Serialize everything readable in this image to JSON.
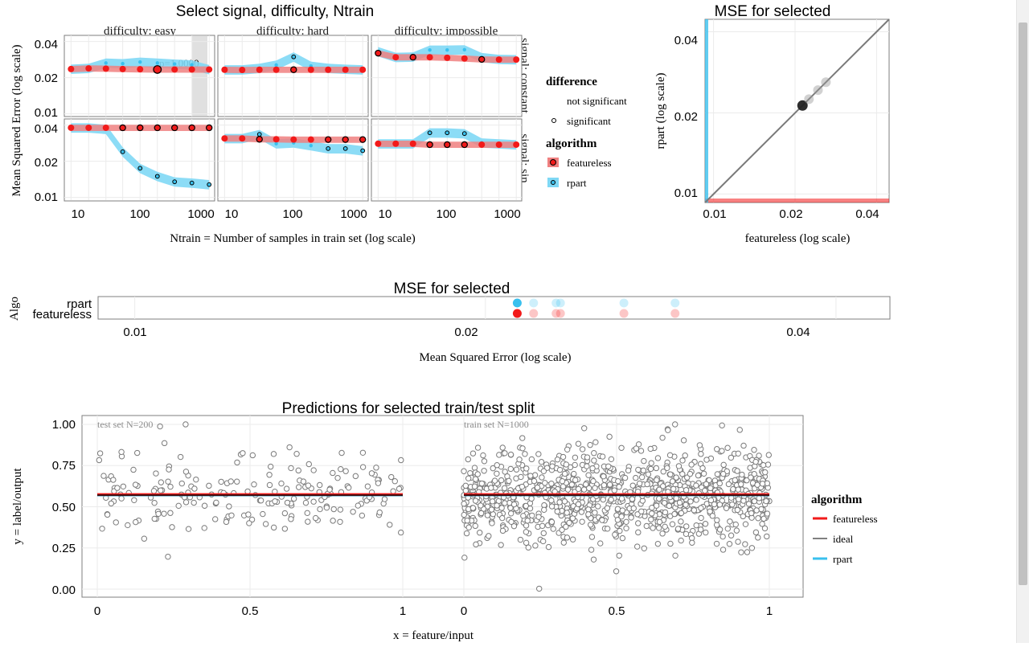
{
  "colors": {
    "featureless": "#f21a1a",
    "featureless_band": "#f08080",
    "rpart": "#39c0ee",
    "rpart_band": "#7fd8f5",
    "ideal": "#000000",
    "diag": "#7a7a7a"
  },
  "plot1": {
    "title": "Select signal, difficulty, Ntrain",
    "ylabel": "Mean Squared Error (log scale)",
    "xlabel": "Ntrain = Number of samples in train set (log scale)",
    "xticks": [
      "10",
      "100",
      "1000"
    ],
    "yticks": [
      "0.01",
      "0.02",
      "0.04"
    ],
    "difficulties": [
      "difficulty: easy",
      "difficulty: hard",
      "difficulty: impossible"
    ],
    "signals": [
      "signal: constant",
      "signal: sin"
    ],
    "pvalue_label": "p=1.0000",
    "legend": {
      "title_diff": "difference",
      "not_significant": "not significant",
      "significant": "significant",
      "title_algo": "algorithm",
      "featureless": "featureless",
      "rpart": "rpart"
    }
  },
  "plot2": {
    "title": "MSE for selected",
    "xlabel": "featureless (log scale)",
    "ylabel": "rpart (log scale)",
    "xticks": [
      "0.01",
      "0.02",
      "0.04"
    ],
    "yticks": [
      "0.01",
      "0.02",
      "0.04"
    ]
  },
  "plot3": {
    "title": "MSE for selected",
    "xlabel": "Mean Squared Error (log scale)",
    "ylabel": "Algo",
    "categories": [
      "featureless",
      "rpart"
    ],
    "xticks": [
      "0.01",
      "0.02",
      "0.04"
    ]
  },
  "plot4": {
    "title": "Predictions for selected train/test split",
    "xlabel": "x = feature/input",
    "ylabel": "y = label/output",
    "panels": [
      "test set N=200",
      "train set N=1000"
    ],
    "xticks": [
      "0",
      "0.5",
      "1"
    ],
    "yticks": [
      "0.00",
      "0.25",
      "0.50",
      "0.75",
      "1.00"
    ],
    "legend": {
      "title": "algorithm",
      "featureless": "featureless",
      "ideal": "ideal",
      "rpart": "rpart"
    }
  },
  "chart_data": [
    {
      "type": "line",
      "title": "Select signal, difficulty, Ntrain",
      "xlabel": "Ntrain = Number of samples in train set (log scale)",
      "ylabel": "Mean Squared Error (log scale)",
      "x_scale": "log",
      "y_scale": "log",
      "xlim": [
        8,
        1200
      ],
      "ylim": [
        0.0095,
        0.045
      ],
      "x": [
        10,
        18,
        32,
        56,
        100,
        178,
        316,
        562,
        1000
      ],
      "facets": [
        {
          "signal": "signal: constant",
          "difficulty": "difficulty: easy",
          "series": [
            {
              "name": "featureless",
              "values": [
                0.0236,
                0.0239,
                0.0238,
                0.0236,
                0.0235,
                0.0234,
                0.0234,
                0.0234,
                0.0234
              ]
            },
            {
              "name": "rpart",
              "values": [
                0.0236,
                0.024,
                0.0265,
                0.0262,
                0.027,
                0.0265,
                0.026,
                0.0256,
                0.0234
              ]
            }
          ],
          "significant": [
            false,
            false,
            false,
            false,
            false,
            false,
            false,
            false,
            false
          ],
          "selected_x": 178
        },
        {
          "signal": "signal: constant",
          "difficulty": "difficulty: hard",
          "series": [
            {
              "name": "featureless",
              "values": [
                0.0233,
                0.0232,
                0.0233,
                0.0233,
                0.0233,
                0.0233,
                0.0233,
                0.0233,
                0.0233
              ]
            },
            {
              "name": "rpart",
              "values": [
                0.0233,
                0.0233,
                0.024,
                0.0255,
                0.0298,
                0.025,
                0.024,
                0.0236,
                0.0233
              ]
            }
          ],
          "significant": [
            false,
            false,
            false,
            false,
            true,
            false,
            false,
            false,
            false
          ]
        },
        {
          "signal": "signal: constant",
          "difficulty": "difficulty: impossible",
          "series": [
            {
              "name": "featureless",
              "values": [
                0.032,
                0.0296,
                0.0296,
                0.0296,
                0.0293,
                0.0289,
                0.0284,
                0.0283,
                0.0283
              ]
            },
            {
              "name": "rpart",
              "values": [
                0.033,
                0.0296,
                0.0298,
                0.034,
                0.034,
                0.0342,
                0.0295,
                0.0285,
                0.0283
              ]
            }
          ],
          "significant": [
            true,
            false,
            true,
            false,
            false,
            false,
            true,
            false,
            false
          ]
        },
        {
          "signal": "signal: sin",
          "difficulty": "difficulty: easy",
          "series": [
            {
              "name": "featureless",
              "values": [
                0.038,
                0.038,
                0.038,
                0.038,
                0.038,
                0.038,
                0.038,
                0.038,
                0.038
              ]
            },
            {
              "name": "rpart",
              "values": [
                0.038,
                0.038,
                0.037,
                0.024,
                0.0175,
                0.015,
                0.0135,
                0.0132,
                0.0128
              ]
            }
          ],
          "significant": [
            false,
            false,
            false,
            true,
            true,
            true,
            true,
            true,
            true
          ]
        },
        {
          "signal": "signal: sin",
          "difficulty": "difficulty: hard",
          "series": [
            {
              "name": "featureless",
              "values": [
                0.031,
                0.031,
                0.0305,
                0.0305,
                0.0303,
                0.0303,
                0.0303,
                0.0303,
                0.0303
              ]
            },
            {
              "name": "rpart",
              "values": [
                0.031,
                0.031,
                0.0335,
                0.028,
                0.0285,
                0.027,
                0.0255,
                0.0255,
                0.0245
              ]
            }
          ],
          "significant": [
            false,
            false,
            true,
            false,
            false,
            false,
            true,
            true,
            true
          ]
        },
        {
          "signal": "signal: sin",
          "difficulty": "difficulty: impossible",
          "series": [
            {
              "name": "featureless",
              "values": [
                0.028,
                0.028,
                0.028,
                0.0275,
                0.0275,
                0.0275,
                0.0275,
                0.0275,
                0.0275
              ]
            },
            {
              "name": "rpart",
              "values": [
                0.028,
                0.028,
                0.028,
                0.0345,
                0.0345,
                0.034,
                0.0285,
                0.028,
                0.0275
              ]
            }
          ],
          "significant": [
            false,
            false,
            false,
            true,
            true,
            true,
            false,
            false,
            false
          ]
        }
      ]
    },
    {
      "type": "scatter",
      "title": "MSE for selected",
      "xlabel": "featureless (log scale)",
      "ylabel": "rpart (log scale)",
      "x_scale": "log",
      "y_scale": "log",
      "xlim": [
        0.0093,
        0.0445
      ],
      "ylim": [
        0.0093,
        0.0445
      ],
      "points": [
        {
          "x": 0.0213,
          "y": 0.0213,
          "selected": true
        },
        {
          "x": 0.0225,
          "y": 0.0225,
          "selected": false
        },
        {
          "x": 0.0243,
          "y": 0.0243,
          "selected": false
        },
        {
          "x": 0.026,
          "y": 0.026,
          "selected": false
        }
      ]
    },
    {
      "type": "scatter",
      "title": "MSE for selected",
      "xlabel": "Mean Squared Error (log scale)",
      "ylabel": "Algo",
      "x_scale": "log",
      "xlim": [
        0.0093,
        0.0445
      ],
      "categories": [
        "featureless",
        "rpart"
      ],
      "series": [
        {
          "name": "featureless",
          "values": [
            0.0213,
            0.022,
            0.023,
            0.0232,
            0.0263,
            0.0291
          ]
        },
        {
          "name": "rpart",
          "values": [
            0.0213,
            0.022,
            0.023,
            0.0232,
            0.0263,
            0.0291
          ]
        }
      ],
      "selected_value": 0.0213
    },
    {
      "type": "scatter",
      "title": "Predictions for selected train/test split",
      "xlabel": "x = feature/input",
      "ylabel": "y = label/output",
      "xlim": [
        -0.05,
        1.05
      ],
      "ylim": [
        -0.02,
        1.02
      ],
      "panels": [
        {
          "name": "test set N=200",
          "n": 200,
          "featureless_prediction": 0.575,
          "rpart_prediction": 0.57,
          "ideal": 0.57
        },
        {
          "name": "train set N=1000",
          "n": 1000,
          "featureless_prediction": 0.575,
          "rpart_prediction": 0.57,
          "ideal": 0.57
        }
      ],
      "point_distribution": {
        "mean": 0.57,
        "sd": 0.14,
        "min": 0.0,
        "max": 1.0
      }
    }
  ]
}
